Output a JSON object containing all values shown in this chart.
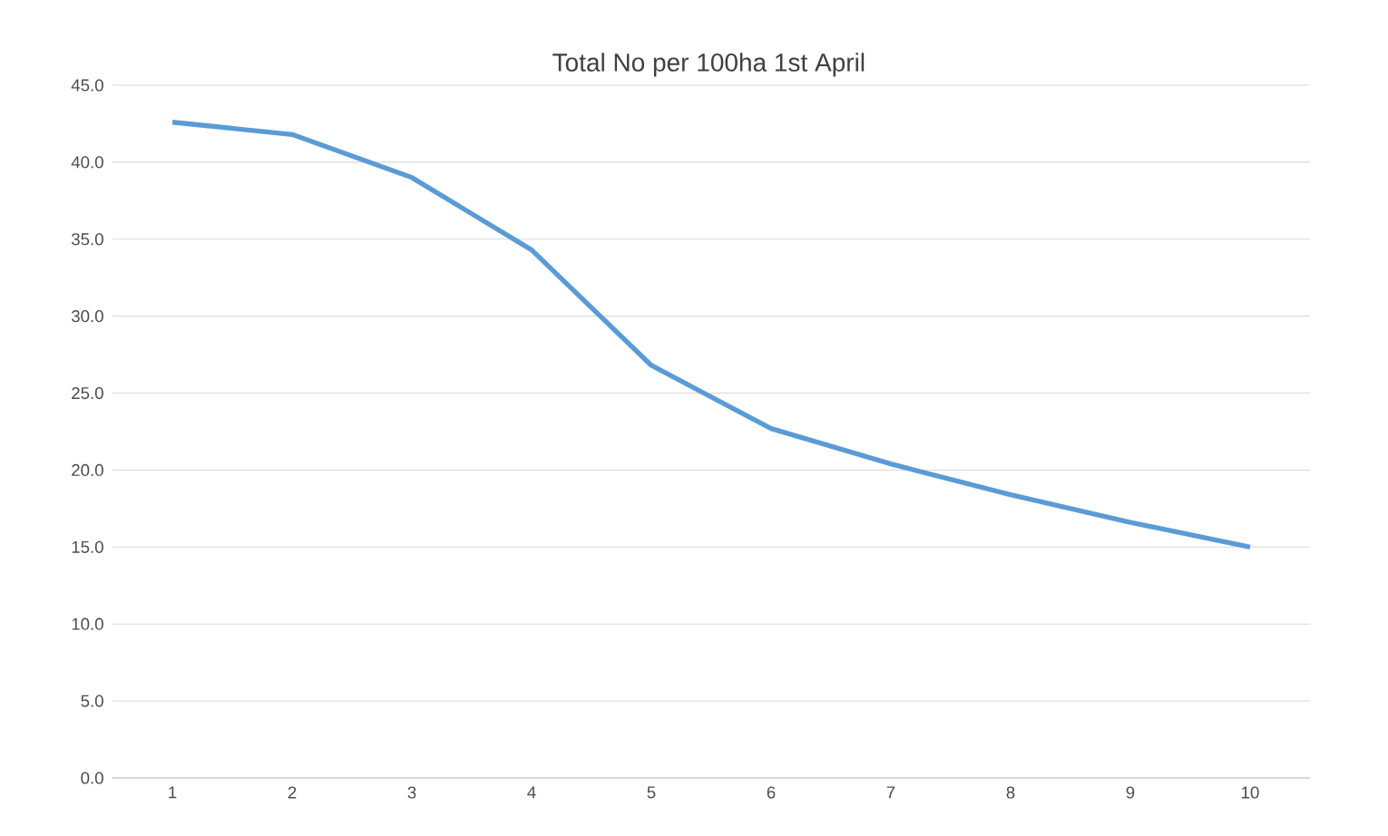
{
  "chart_data": {
    "type": "line",
    "title": "Total No per 100ha 1st April",
    "categories": [
      "1",
      "2",
      "3",
      "4",
      "5",
      "6",
      "7",
      "8",
      "9",
      "10"
    ],
    "series": [
      {
        "color": "#5b9bd5",
        "values": [
          42.6,
          41.8,
          39.0,
          34.3,
          26.8,
          22.7,
          20.4,
          18.4,
          16.6,
          15.0
        ]
      }
    ],
    "ylim": [
      0,
      45
    ],
    "yticks": [
      {
        "value": 0,
        "label": "0.0"
      },
      {
        "value": 5,
        "label": "5.0"
      },
      {
        "value": 10,
        "label": "10.0"
      },
      {
        "value": 15,
        "label": "15.0"
      },
      {
        "value": 20,
        "label": "20.0"
      },
      {
        "value": 25,
        "label": "25.0"
      },
      {
        "value": 30,
        "label": "30.0"
      },
      {
        "value": 35,
        "label": "35.0"
      },
      {
        "value": 40,
        "label": "40.0"
      },
      {
        "value": 45,
        "label": "45.0"
      }
    ],
    "grid": "y"
  }
}
